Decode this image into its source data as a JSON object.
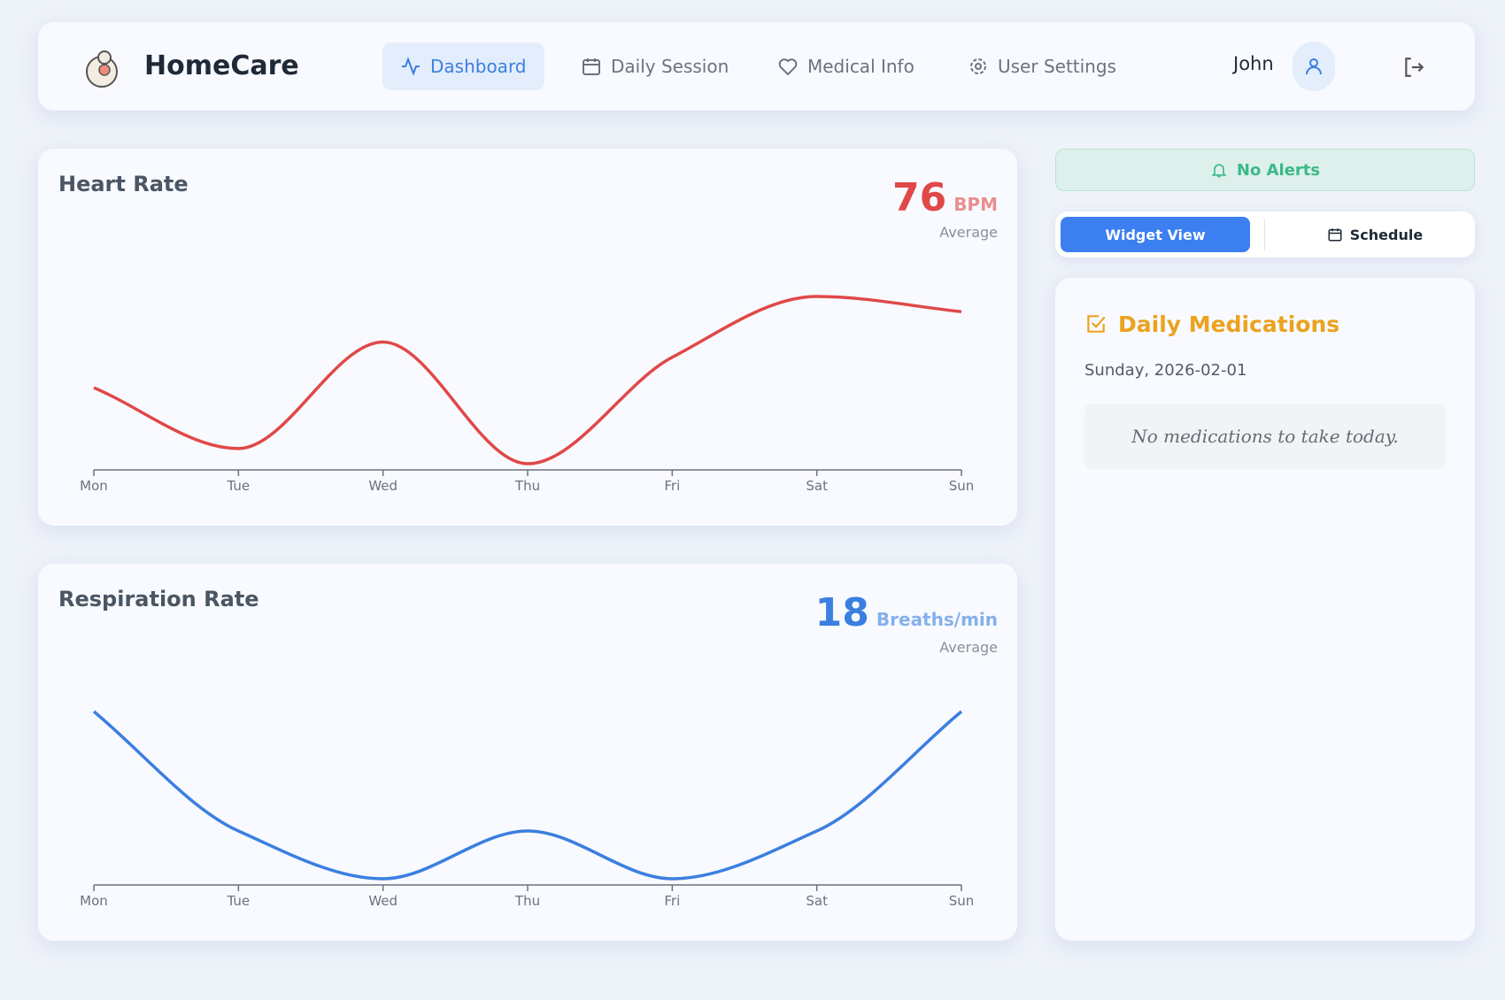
{
  "nav": {
    "brand": "HomeCare",
    "items": [
      "Dashboard",
      "Daily Session",
      "Medical Info",
      "User Settings"
    ],
    "user": "John"
  },
  "chart_data": [
    {
      "type": "line",
      "title": "Heart Rate",
      "average": 76,
      "unit": "BPM",
      "average_label": "Average",
      "color": "#e04848",
      "categories": [
        "Mon",
        "Tue",
        "Wed",
        "Thu",
        "Fri",
        "Sat",
        "Sun"
      ],
      "values": [
        75,
        71,
        78,
        70,
        77,
        81,
        80
      ]
    },
    {
      "type": "line",
      "title": "Respiration Rate",
      "average": 18,
      "unit": "Breaths/min",
      "average_label": "Average",
      "color": "#3b7fe0",
      "categories": [
        "Mon",
        "Tue",
        "Wed",
        "Thu",
        "Fri",
        "Sat",
        "Sun"
      ],
      "values": [
        22,
        17,
        15,
        17,
        15,
        17,
        22
      ]
    }
  ],
  "alerts": "No Alerts",
  "view_toggle": [
    "Widget View",
    "Schedule"
  ],
  "medications": {
    "title": "Daily Medications",
    "date": "Sunday, 2026-02-01",
    "empty": "No medications to take today."
  }
}
